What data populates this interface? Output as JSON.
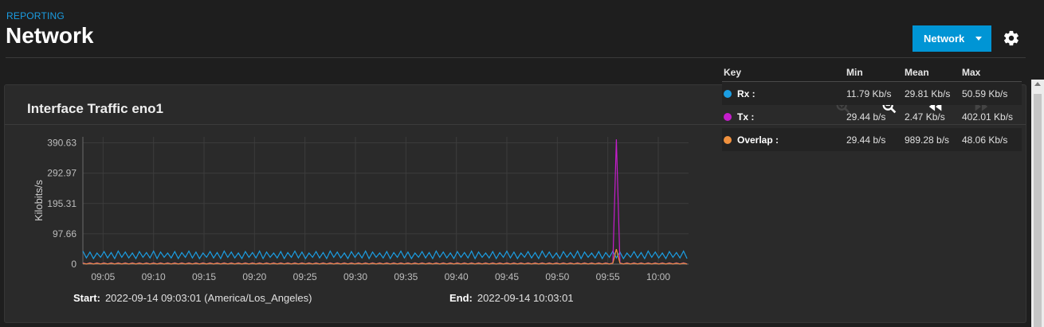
{
  "header": {
    "eyebrow": "REPORTING",
    "title": "Network"
  },
  "toolbar": {
    "network_button": "Network",
    "settings_icon": "gear-icon"
  },
  "card": {
    "title": "Interface Traffic eno1",
    "tools": [
      "zoom-in-icon",
      "zoom-out-icon",
      "rewind-icon",
      "fast-forward-icon"
    ]
  },
  "range": {
    "start_label": "Start:",
    "start_value": "2022-09-14 09:03:01 (America/Los_Angeles)",
    "end_label": "End:",
    "end_value": "2022-09-14 10:03:01"
  },
  "legend": {
    "headers": [
      "Key",
      "Min",
      "Mean",
      "Max"
    ],
    "rows": [
      {
        "name": "Rx :",
        "color": "#1b9de2",
        "min": "11.79 Kb/s",
        "mean": "29.81 Kb/s",
        "max": "50.59 Kb/s"
      },
      {
        "name": "Tx :",
        "color": "#c51dcc",
        "min": "29.44 b/s",
        "mean": "2.47 Kb/s",
        "max": "402.01 Kb/s"
      },
      {
        "name": "Overlap :",
        "color": "#f0913e",
        "min": "29.44 b/s",
        "mean": "989.28 b/s",
        "max": "48.06 Kb/s"
      }
    ]
  },
  "chart_data": {
    "type": "line",
    "ylabel": "Kilobits/s",
    "y_ticks": [
      "390.63",
      "292.97",
      "195.31",
      "97.66",
      "0"
    ],
    "x_ticks": [
      "09:05",
      "09:10",
      "09:15",
      "09:20",
      "09:25",
      "09:30",
      "09:35",
      "09:40",
      "09:45",
      "09:50",
      "09:55",
      "10:00"
    ],
    "x_range": [
      "09:03",
      "10:03"
    ],
    "ylim": [
      0,
      410
    ],
    "grid": true,
    "series": [
      {
        "name": "Rx",
        "color": "#1b9de2",
        "low": 18,
        "high": 42
      },
      {
        "name": "Tx",
        "color": "#c51dcc",
        "low": 0.5,
        "high": 4,
        "spike_time": "09:56",
        "spike_value": 402.01
      },
      {
        "name": "Overlap",
        "color": "#f0913e",
        "low": 0.5,
        "high": 3,
        "spike_time": "09:56",
        "spike_value": 48.06
      }
    ]
  }
}
